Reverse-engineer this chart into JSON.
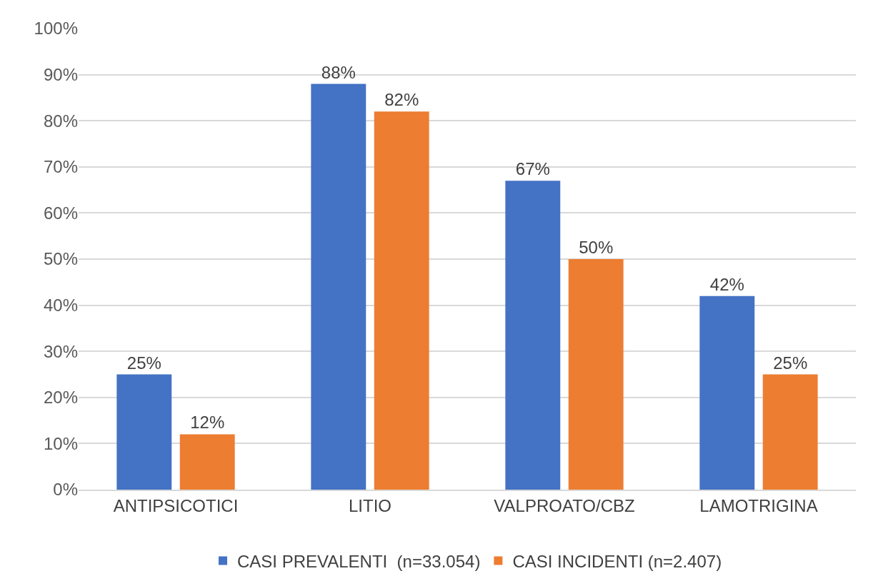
{
  "chart_data": {
    "type": "bar",
    "categories": [
      "ANTIPSICOTICI",
      "LITIO",
      "VALPROATO/CBZ",
      "LAMOTRIGINA"
    ],
    "series": [
      {
        "name": "CASI PREVALENTI  (n=33.054)",
        "color": "#4472c4",
        "values": [
          25,
          88,
          67,
          42
        ],
        "value_labels": [
          "25%",
          "88%",
          "67%",
          "42%"
        ]
      },
      {
        "name": "CASI INCIDENTI (n=2.407)",
        "color": "#ed7d31",
        "values": [
          12,
          82,
          50,
          25
        ],
        "value_labels": [
          "12%",
          "82%",
          "50%",
          "25%"
        ]
      }
    ],
    "ylim": [
      0,
      100
    ],
    "yticks": [
      {
        "value": 0,
        "label": "0%"
      },
      {
        "value": 10,
        "label": "10%"
      },
      {
        "value": 20,
        "label": "20%"
      },
      {
        "value": 30,
        "label": "30%"
      },
      {
        "value": 40,
        "label": "40%"
      },
      {
        "value": 50,
        "label": "50%"
      },
      {
        "value": 60,
        "label": "60%"
      },
      {
        "value": 70,
        "label": "70%"
      },
      {
        "value": 80,
        "label": "80%"
      },
      {
        "value": 90,
        "label": "90%"
      },
      {
        "value": 100,
        "label": "100%"
      }
    ],
    "grid": "y",
    "legend": "bottom"
  }
}
